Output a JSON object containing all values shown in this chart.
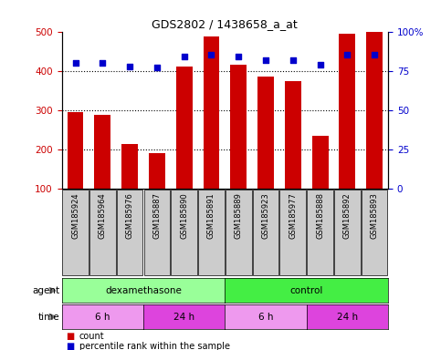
{
  "title": "GDS2802 / 1438658_a_at",
  "samples": [
    "GSM185924",
    "GSM185964",
    "GSM185976",
    "GSM185887",
    "GSM185890",
    "GSM185891",
    "GSM185889",
    "GSM185923",
    "GSM185977",
    "GSM185888",
    "GSM185892",
    "GSM185893"
  ],
  "counts": [
    295,
    288,
    215,
    190,
    410,
    488,
    415,
    385,
    373,
    235,
    495,
    500
  ],
  "percentile_ranks": [
    80,
    80,
    78,
    77,
    84,
    85,
    84,
    82,
    82,
    79,
    85,
    85
  ],
  "ylim_left": [
    100,
    500
  ],
  "ylim_right": [
    0,
    100
  ],
  "yticks_left": [
    100,
    200,
    300,
    400,
    500
  ],
  "yticks_right": [
    0,
    25,
    50,
    75,
    100
  ],
  "bar_color": "#cc0000",
  "dot_color": "#0000cc",
  "agent_groups": [
    {
      "label": "dexamethasone",
      "start": 0,
      "end": 6,
      "color": "#99ff99"
    },
    {
      "label": "control",
      "start": 6,
      "end": 12,
      "color": "#44ee44"
    }
  ],
  "time_groups": [
    {
      "label": "6 h",
      "start": 0,
      "end": 3,
      "color": "#ee99ee"
    },
    {
      "label": "24 h",
      "start": 3,
      "end": 6,
      "color": "#dd44dd"
    },
    {
      "label": "6 h",
      "start": 6,
      "end": 9,
      "color": "#ee99ee"
    },
    {
      "label": "24 h",
      "start": 9,
      "end": 12,
      "color": "#dd44dd"
    }
  ],
  "tick_label_bg": "#cccccc",
  "figsize": [
    4.83,
    3.84
  ],
  "dpi": 100
}
